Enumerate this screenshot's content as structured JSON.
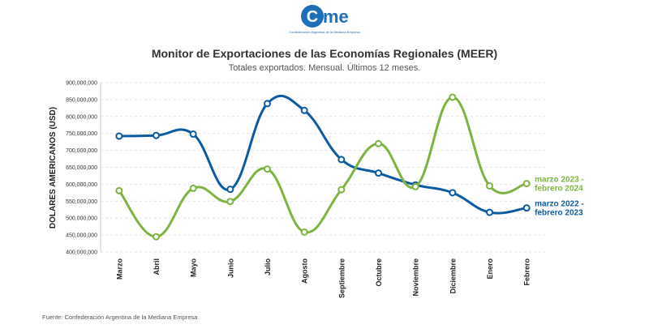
{
  "logo": {
    "name": "came",
    "subtitle": "Confederación Argentina de la Mediana Empresa"
  },
  "header": {
    "title": "Monitor de Exportaciones de las Economías Regionales (MEER)",
    "subtitle": "Totales exportados. Mensual. Últimos 12 meses."
  },
  "footer": {
    "source": "Fuente: Confederación Argentina de la Mediana Empresa"
  },
  "colors": {
    "blue": "#0B5AA2",
    "green": "#7DB33F",
    "grid": "#e3e3e3",
    "text": "#333333"
  },
  "chart_data": {
    "type": "line",
    "ylabel": "DOLARES AMERICANOS (USD)",
    "xlabel": "",
    "ylim": [
      400000000,
      900000000
    ],
    "yticks": [
      "400,000,000",
      "450,000,000",
      "500,000,000",
      "550,000,000",
      "600,000,000",
      "650,000,000",
      "700,000,000",
      "750,000,000",
      "800,000,000",
      "850,000,000",
      "900,000,000"
    ],
    "categories": [
      "Marzo",
      "Abril",
      "Mayo",
      "Junio",
      "Julio",
      "Agosto",
      "Septiembre",
      "Octubre",
      "Noviembre",
      "Diciembre",
      "Enero",
      "Febrero"
    ],
    "grid": true,
    "series": [
      {
        "name": "marzo 2022 - febrero 2023",
        "label_lines": [
          "marzo 2022 -",
          "febrero 2023"
        ],
        "color": "#0B5AA2",
        "values": [
          742000000,
          744000000,
          748000000,
          585000000,
          838000000,
          818000000,
          673000000,
          633000000,
          598000000,
          575000000,
          517000000,
          530000000
        ]
      },
      {
        "name": "marzo 2023 - febrero 2024",
        "label_lines": [
          "marzo 2023 -",
          "febrero 2024"
        ],
        "color": "#7DB33F",
        "values": [
          581000000,
          445000000,
          588000000,
          549000000,
          645000000,
          459000000,
          584000000,
          720000000,
          593000000,
          857000000,
          595000000,
          602000000
        ]
      }
    ]
  }
}
